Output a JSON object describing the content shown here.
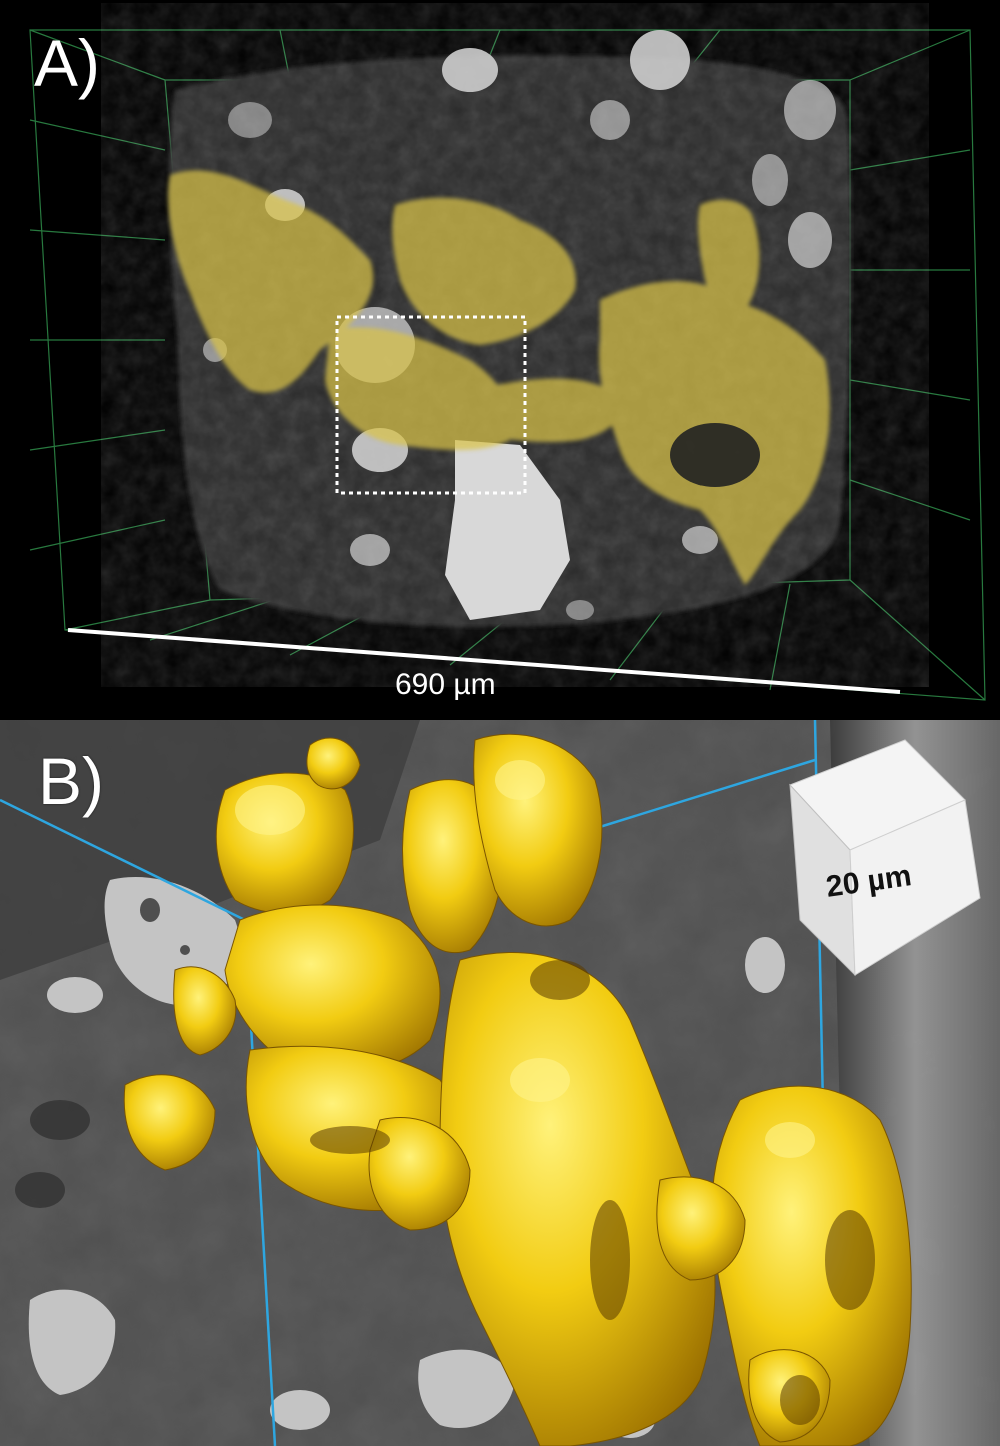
{
  "panels": {
    "a": {
      "label": "A)",
      "scale_bar_text": "690 µm"
    },
    "b": {
      "label": "B)",
      "scale_cube_text": "20 µm"
    }
  },
  "colors": {
    "gold": "#e8c21a",
    "gold_translucent": "#d9c34a",
    "grid_green": "#2f8f4a",
    "arrow_cyan": "#3fc4ee",
    "gray_matrix": "#4a4a4a",
    "light_grain": "#c9c9c9"
  },
  "icons": {
    "arrow": "arrow-up-right-icon"
  }
}
